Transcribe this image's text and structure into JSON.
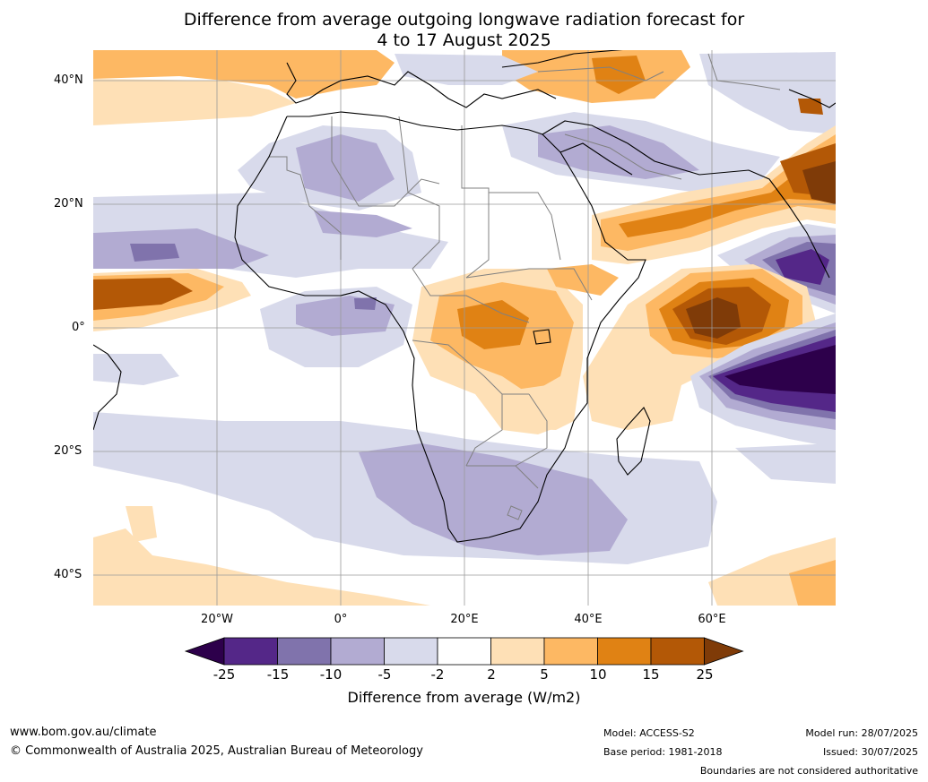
{
  "title": {
    "line1": "Difference from average outgoing longwave radiation forecast for",
    "line2": "4 to 17 August 2025"
  },
  "axes": {
    "lat_labels": [
      "40°N",
      "20°N",
      "0°",
      "20°S",
      "40°S"
    ],
    "lon_labels": [
      "20°W",
      "0°",
      "20°E",
      "40°E",
      "60°E"
    ]
  },
  "colorbar": {
    "title": "Difference from average (W/m2)",
    "ticks": [
      "-25",
      "-15",
      "-10",
      "-5",
      "-2",
      "2",
      "5",
      "10",
      "15",
      "25"
    ],
    "colors": [
      "#2d004b",
      "#542788",
      "#8073ac",
      "#b2abd2",
      "#d8daeb",
      "#ffffff",
      "#fee0b6",
      "#fdb863",
      "#e08214",
      "#b35806",
      "#7f3b08"
    ]
  },
  "footer": {
    "url": "www.bom.gov.au/climate",
    "copyright": "© Commonwealth of Australia 2025, Australian Bureau of Meteorology",
    "model": "Model: ACCESS-S2",
    "base_period": "Base period: 1981-2018",
    "model_run": "Model run: 28/07/2025",
    "issued": "Issued: 30/07/2025",
    "disclaimer": "Boundaries are not considered authoritative"
  }
}
